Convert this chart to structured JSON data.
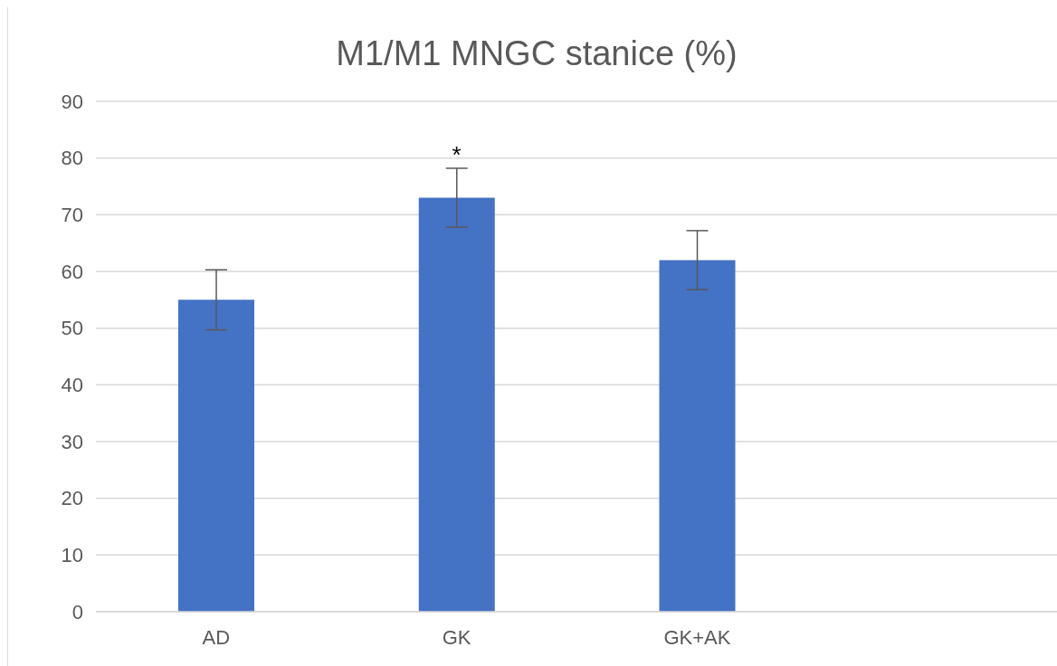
{
  "chart_data": {
    "type": "bar",
    "title": "M1/M1 MNGC stanice (%)",
    "categories": [
      "AD",
      "GK",
      "GK+AK",
      null
    ],
    "values": [
      55,
      73,
      62,
      null
    ],
    "color": "#4472c4",
    "errors": [
      5.3,
      5.2,
      5.2,
      null
    ],
    "ylim": [
      0,
      90
    ],
    "yticks": [
      0,
      10,
      20,
      30,
      40,
      50,
      60,
      70,
      80,
      90
    ],
    "grid": "y",
    "annotations": [
      "*"
    ]
  }
}
